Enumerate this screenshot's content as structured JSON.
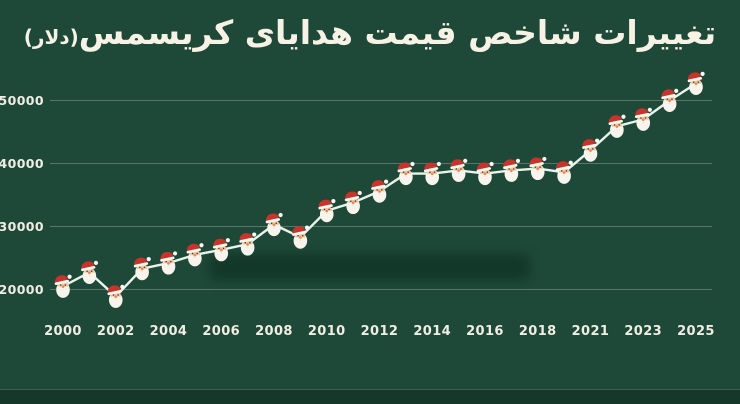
{
  "title": {
    "text": "تغییرات شاخص قیمت هدایای کریسمس",
    "unit": "(دلار)"
  },
  "chart_data": {
    "type": "line",
    "title": "تغییرات شاخص قیمت هدایای کریسمس (دلار)",
    "x": [
      2000,
      2001,
      2002,
      2003,
      2004,
      2005,
      2006,
      2007,
      2008,
      2009,
      2010,
      2011,
      2012,
      2013,
      2014,
      2015,
      2016,
      2017,
      2018,
      2019,
      2021,
      2022,
      2023,
      2024,
      2025
    ],
    "values": [
      20500,
      22700,
      18900,
      23300,
      24200,
      25500,
      26300,
      27200,
      30300,
      28300,
      32500,
      33800,
      35600,
      38400,
      38400,
      38900,
      38400,
      38900,
      39200,
      38600,
      42100,
      45900,
      47000,
      50000,
      52700
    ],
    "xtick_labels": [
      "2000",
      "2002",
      "2004",
      "2006",
      "2008",
      "2010",
      "2012",
      "2014",
      "2016",
      "2018",
      "2021",
      "2023",
      "2025"
    ],
    "yticks": [
      20000,
      30000,
      40000,
      50000
    ],
    "ylim": [
      17000,
      54000
    ],
    "xlabel": "",
    "ylabel": "",
    "grid": "horizontal",
    "legend": "none",
    "marker": "santa-face"
  },
  "colors": {
    "background": "#1e4838",
    "footer_band": "#16382b",
    "title_text": "#f7f2e6",
    "tick_label": "#f0ede3",
    "gridline": "rgba(255,255,255,0.26)",
    "line": "#e8f3ec",
    "santa_hat": "#c6342c",
    "santa_trim": "#fbf8f1",
    "santa_beard": "#f7f4ed",
    "santa_skin": "#f0c49c",
    "santa_nose": "#e08a5a",
    "santa_eye": "#4a3020",
    "watermark": "rgba(6,40,26,0.48)"
  }
}
